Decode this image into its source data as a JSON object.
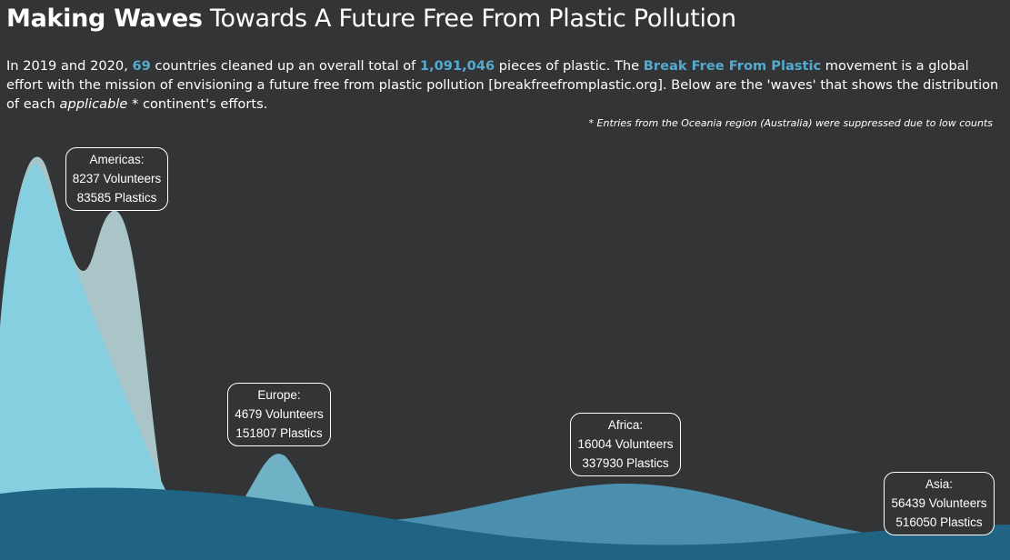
{
  "header": {
    "title_bold": "Making Waves",
    "title_rest": " Towards A Future Free From Plastic Pollution"
  },
  "intro": {
    "p1": "In 2019 and 2020, ",
    "countries": "69",
    "p2": " countries cleaned up an overall total of ",
    "total_plastics": "1,091,046",
    "p3": " pieces of plastic. The ",
    "movement": "Break Free From Plastic",
    "p4": " movement is a global effort with the mission of envisioning a future free from plastic pollution [breakfreefromplastic.org]. Below are the 'waves' that shows the distribution of each ",
    "emph": "applicable",
    "p5": " * continent's efforts."
  },
  "footnote": "* Entries from the Oceania region (Australia) were suppressed due to low counts",
  "colors": {
    "background": "#333435",
    "highlight": "#55aad0",
    "americas_back": "#a9c5c8",
    "americas_front": "#86cfe0",
    "europe": "#6fb2c6",
    "africa": "#4a8fad",
    "asia": "#1f6482"
  },
  "chart_data": {
    "type": "area",
    "series": [
      {
        "name": "Americas:",
        "volunteers": 8237,
        "plastics": 83585,
        "volunteers_label": "8237 Volunteers",
        "plastics_label": "83585 Plastics"
      },
      {
        "name": "Europe:",
        "volunteers": 4679,
        "plastics": 151807,
        "volunteers_label": "4679 Volunteers",
        "plastics_label": "151807 Plastics"
      },
      {
        "name": "Africa:",
        "volunteers": 16004,
        "plastics": 337930,
        "volunteers_label": "16004 Volunteers",
        "plastics_label": "337930 Plastics"
      },
      {
        "name": "Asia:",
        "volunteers": 56439,
        "plastics": 516050,
        "volunteers_label": "56439 Volunteers",
        "plastics_label": "516050 Plastics"
      }
    ]
  }
}
